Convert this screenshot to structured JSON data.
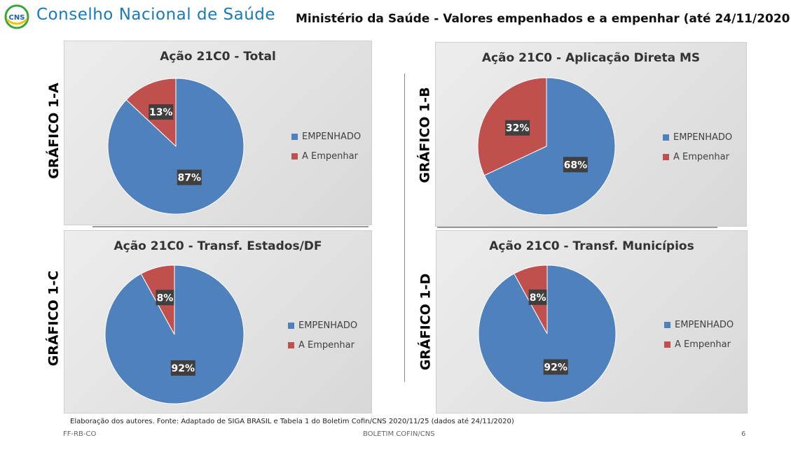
{
  "header": {
    "logo_text": "CNS",
    "org_name": "Conselho Nacional de Saúde",
    "title": "Ministério da Saúde - Valores empenhados e a empenhar (até 24/11/2020)"
  },
  "colors": {
    "empenhado": "#4f81bd",
    "a_empenhar": "#c0504d",
    "org_blue": "#1a7ab5"
  },
  "panels": [
    {
      "id": "a",
      "side_label": "GRÁFICO 1-A"
    },
    {
      "id": "b",
      "side_label": "GRÁFICO 1-B"
    },
    {
      "id": "c",
      "side_label": "GRÁFICO 1-C"
    },
    {
      "id": "d",
      "side_label": "GRÁFICO 1-D"
    }
  ],
  "chart_data": [
    {
      "type": "pie",
      "title": "Ação 21C0 - Total",
      "categories": [
        "EMPENHADO",
        "A Empenhar"
      ],
      "values": [
        87,
        13
      ],
      "labels": [
        "87%",
        "13%"
      ],
      "legend_position": "right"
    },
    {
      "type": "pie",
      "title": "Ação 21C0 - Aplicação Direta MS",
      "categories": [
        "EMPENHADO",
        "A Empenhar"
      ],
      "values": [
        68,
        32
      ],
      "labels": [
        "68%",
        "32%"
      ],
      "legend_position": "right"
    },
    {
      "type": "pie",
      "title": "Ação 21C0 - Transf. Estados/DF",
      "categories": [
        "EMPENHADO",
        "A Empenhar"
      ],
      "values": [
        92,
        8
      ],
      "labels": [
        "92%",
        "8%"
      ],
      "legend_position": "right"
    },
    {
      "type": "pie",
      "title": "Ação 21C0 - Transf. Municípios",
      "categories": [
        "EMPENHADO",
        "A Empenhar"
      ],
      "values": [
        92,
        8
      ],
      "labels": [
        "92%",
        "8%"
      ],
      "legend_position": "right"
    }
  ],
  "footer": {
    "source": "Elaboração dos autores. Fonte: Adaptado de SIGA BRASIL e Tabela 1 do Boletim Cofin/CNS 2020/11/25 (dados até 24/11/2020)",
    "left": "FF-RB-CO",
    "center": "BOLETIM COFIN/CNS",
    "page": "6"
  }
}
